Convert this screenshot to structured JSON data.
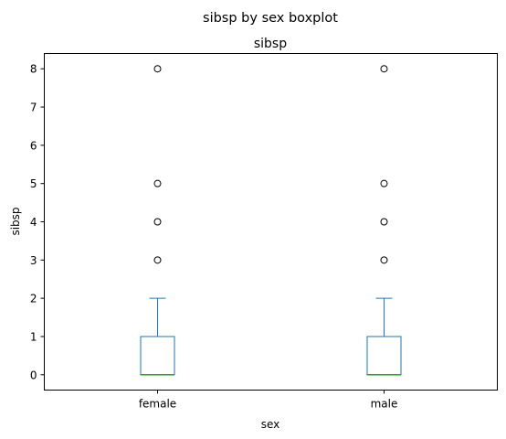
{
  "chart_data": {
    "type": "boxplot",
    "suptitle": "sibsp by sex boxplot",
    "title": "sibsp",
    "xlabel": "sex",
    "ylabel": "sibsp",
    "categories": [
      "female",
      "male"
    ],
    "yticks": [
      0,
      1,
      2,
      3,
      4,
      5,
      6,
      7,
      8
    ],
    "ylim": [
      -0.4,
      8.4
    ],
    "grid": false,
    "colors": {
      "box": "#1f77b4",
      "median": "#2ca02c",
      "outlier": "#000000"
    },
    "boxes": [
      {
        "category": "female",
        "whisker_low": 0,
        "q1": 0,
        "median": 0,
        "q3": 1,
        "whisker_high": 2,
        "outliers": [
          3,
          4,
          5,
          8
        ]
      },
      {
        "category": "male",
        "whisker_low": 0,
        "q1": 0,
        "median": 0,
        "q3": 1,
        "whisker_high": 2,
        "outliers": [
          3,
          4,
          5,
          8
        ]
      }
    ]
  }
}
